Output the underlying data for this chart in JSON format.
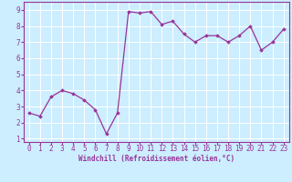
{
  "x": [
    0,
    1,
    2,
    3,
    4,
    5,
    6,
    7,
    8,
    9,
    10,
    11,
    12,
    13,
    14,
    15,
    16,
    17,
    18,
    19,
    20,
    21,
    22,
    23
  ],
  "y": [
    2.6,
    2.4,
    3.6,
    4.0,
    3.8,
    3.4,
    2.8,
    1.3,
    2.6,
    8.9,
    8.8,
    8.9,
    8.1,
    8.3,
    7.5,
    7.0,
    7.4,
    7.4,
    7.0,
    7.4,
    8.0,
    6.5,
    7.0,
    7.8
  ],
  "line_color": "#993399",
  "marker": "D",
  "marker_size": 1.8,
  "line_width": 0.9,
  "bg_color": "#cceeff",
  "grid_color": "#ffffff",
  "xlabel": "Windchill (Refroidissement éolien,°C)",
  "xlim": [
    -0.5,
    23.5
  ],
  "ylim": [
    0.8,
    9.5
  ],
  "yticks": [
    1,
    2,
    3,
    4,
    5,
    6,
    7,
    8,
    9
  ],
  "xticks": [
    0,
    1,
    2,
    3,
    4,
    5,
    6,
    7,
    8,
    9,
    10,
    11,
    12,
    13,
    14,
    15,
    16,
    17,
    18,
    19,
    20,
    21,
    22,
    23
  ],
  "tick_color": "#993399",
  "label_color": "#993399",
  "label_fontsize": 5.5,
  "tick_fontsize": 5.5,
  "spine_color": "#993399"
}
